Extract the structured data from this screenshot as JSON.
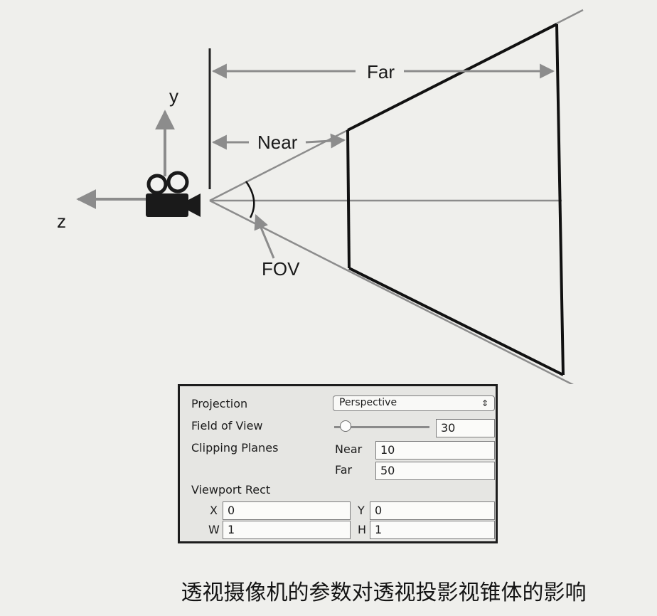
{
  "diagram": {
    "labels": {
      "far": "Far",
      "near": "Near",
      "fov": "FOV",
      "axis_y": "y",
      "axis_z": "z"
    }
  },
  "inspector": {
    "projection_label": "Projection",
    "projection_value": "Perspective",
    "fov_label": "Field of View",
    "fov_value": "30",
    "fov_slider_fraction": 0.12,
    "clipping_label": "Clipping Planes",
    "near_label": "Near",
    "near_value": "10",
    "far_label": "Far",
    "far_value": "50",
    "viewport_label": "Viewport Rect",
    "x_label": "X",
    "x_value": "0",
    "y_label": "Y",
    "y_value": "0",
    "w_label": "W",
    "w_value": "1",
    "h_label": "H",
    "h_value": "1"
  },
  "caption": "透视摄像机的参数对透视投影视锥体的影响"
}
